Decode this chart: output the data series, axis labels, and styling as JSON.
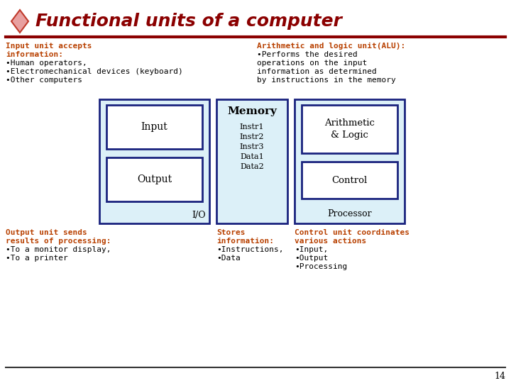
{
  "title": "Functional units of a computer",
  "title_color": "#8B0000",
  "diamond_color": "#C0392B",
  "diamond_fill": "#E8A0A0",
  "bg_color": "#FFFFFF",
  "separator_color": "#8B0000",
  "input_text_lines": [
    "Input unit accepts",
    "information:",
    "•Human operators,",
    "•Electromechanical devices (keyboard)",
    "•Other computers"
  ],
  "input_text_color_header": "#B84000",
  "input_text_color_body": "#000000",
  "alu_text_lines": [
    "Arithmetic and logic unit(ALU):",
    "•Performs the desired",
    "operations on the input",
    "information as determined",
    "by instructions in the memory"
  ],
  "alu_text_color_header": "#B84000",
  "alu_text_color_body": "#000000",
  "output_text_lines": [
    "Output unit sends",
    "results of processing:",
    "•To a monitor display,",
    "•To a printer"
  ],
  "output_text_color_header": "#B84000",
  "output_text_color_body": "#000000",
  "memory_label": "Memory",
  "memory_items": [
    "Instr1",
    "Instr2",
    "Instr3",
    "Data1",
    "Data2"
  ],
  "memory_footer_lines": [
    "Stores",
    "information:",
    "•Instructions,",
    "•Data"
  ],
  "memory_footer_color": "#B84000",
  "processor_label": "Processor",
  "processor_footer_lines": [
    "Control unit coordinates",
    "various actions",
    "•Input,",
    "•Output",
    "•Processing"
  ],
  "processor_footer_color": "#B84000",
  "io_box_fill": "#DCF0F8",
  "io_box_border": "#1A237E",
  "io_box_inner_fill": "#FFFFFF",
  "memory_box_fill": "#DCF0F8",
  "memory_box_border": "#1A237E",
  "processor_box_fill": "#DCF0F8",
  "processor_box_border": "#1A237E",
  "page_number": "14"
}
